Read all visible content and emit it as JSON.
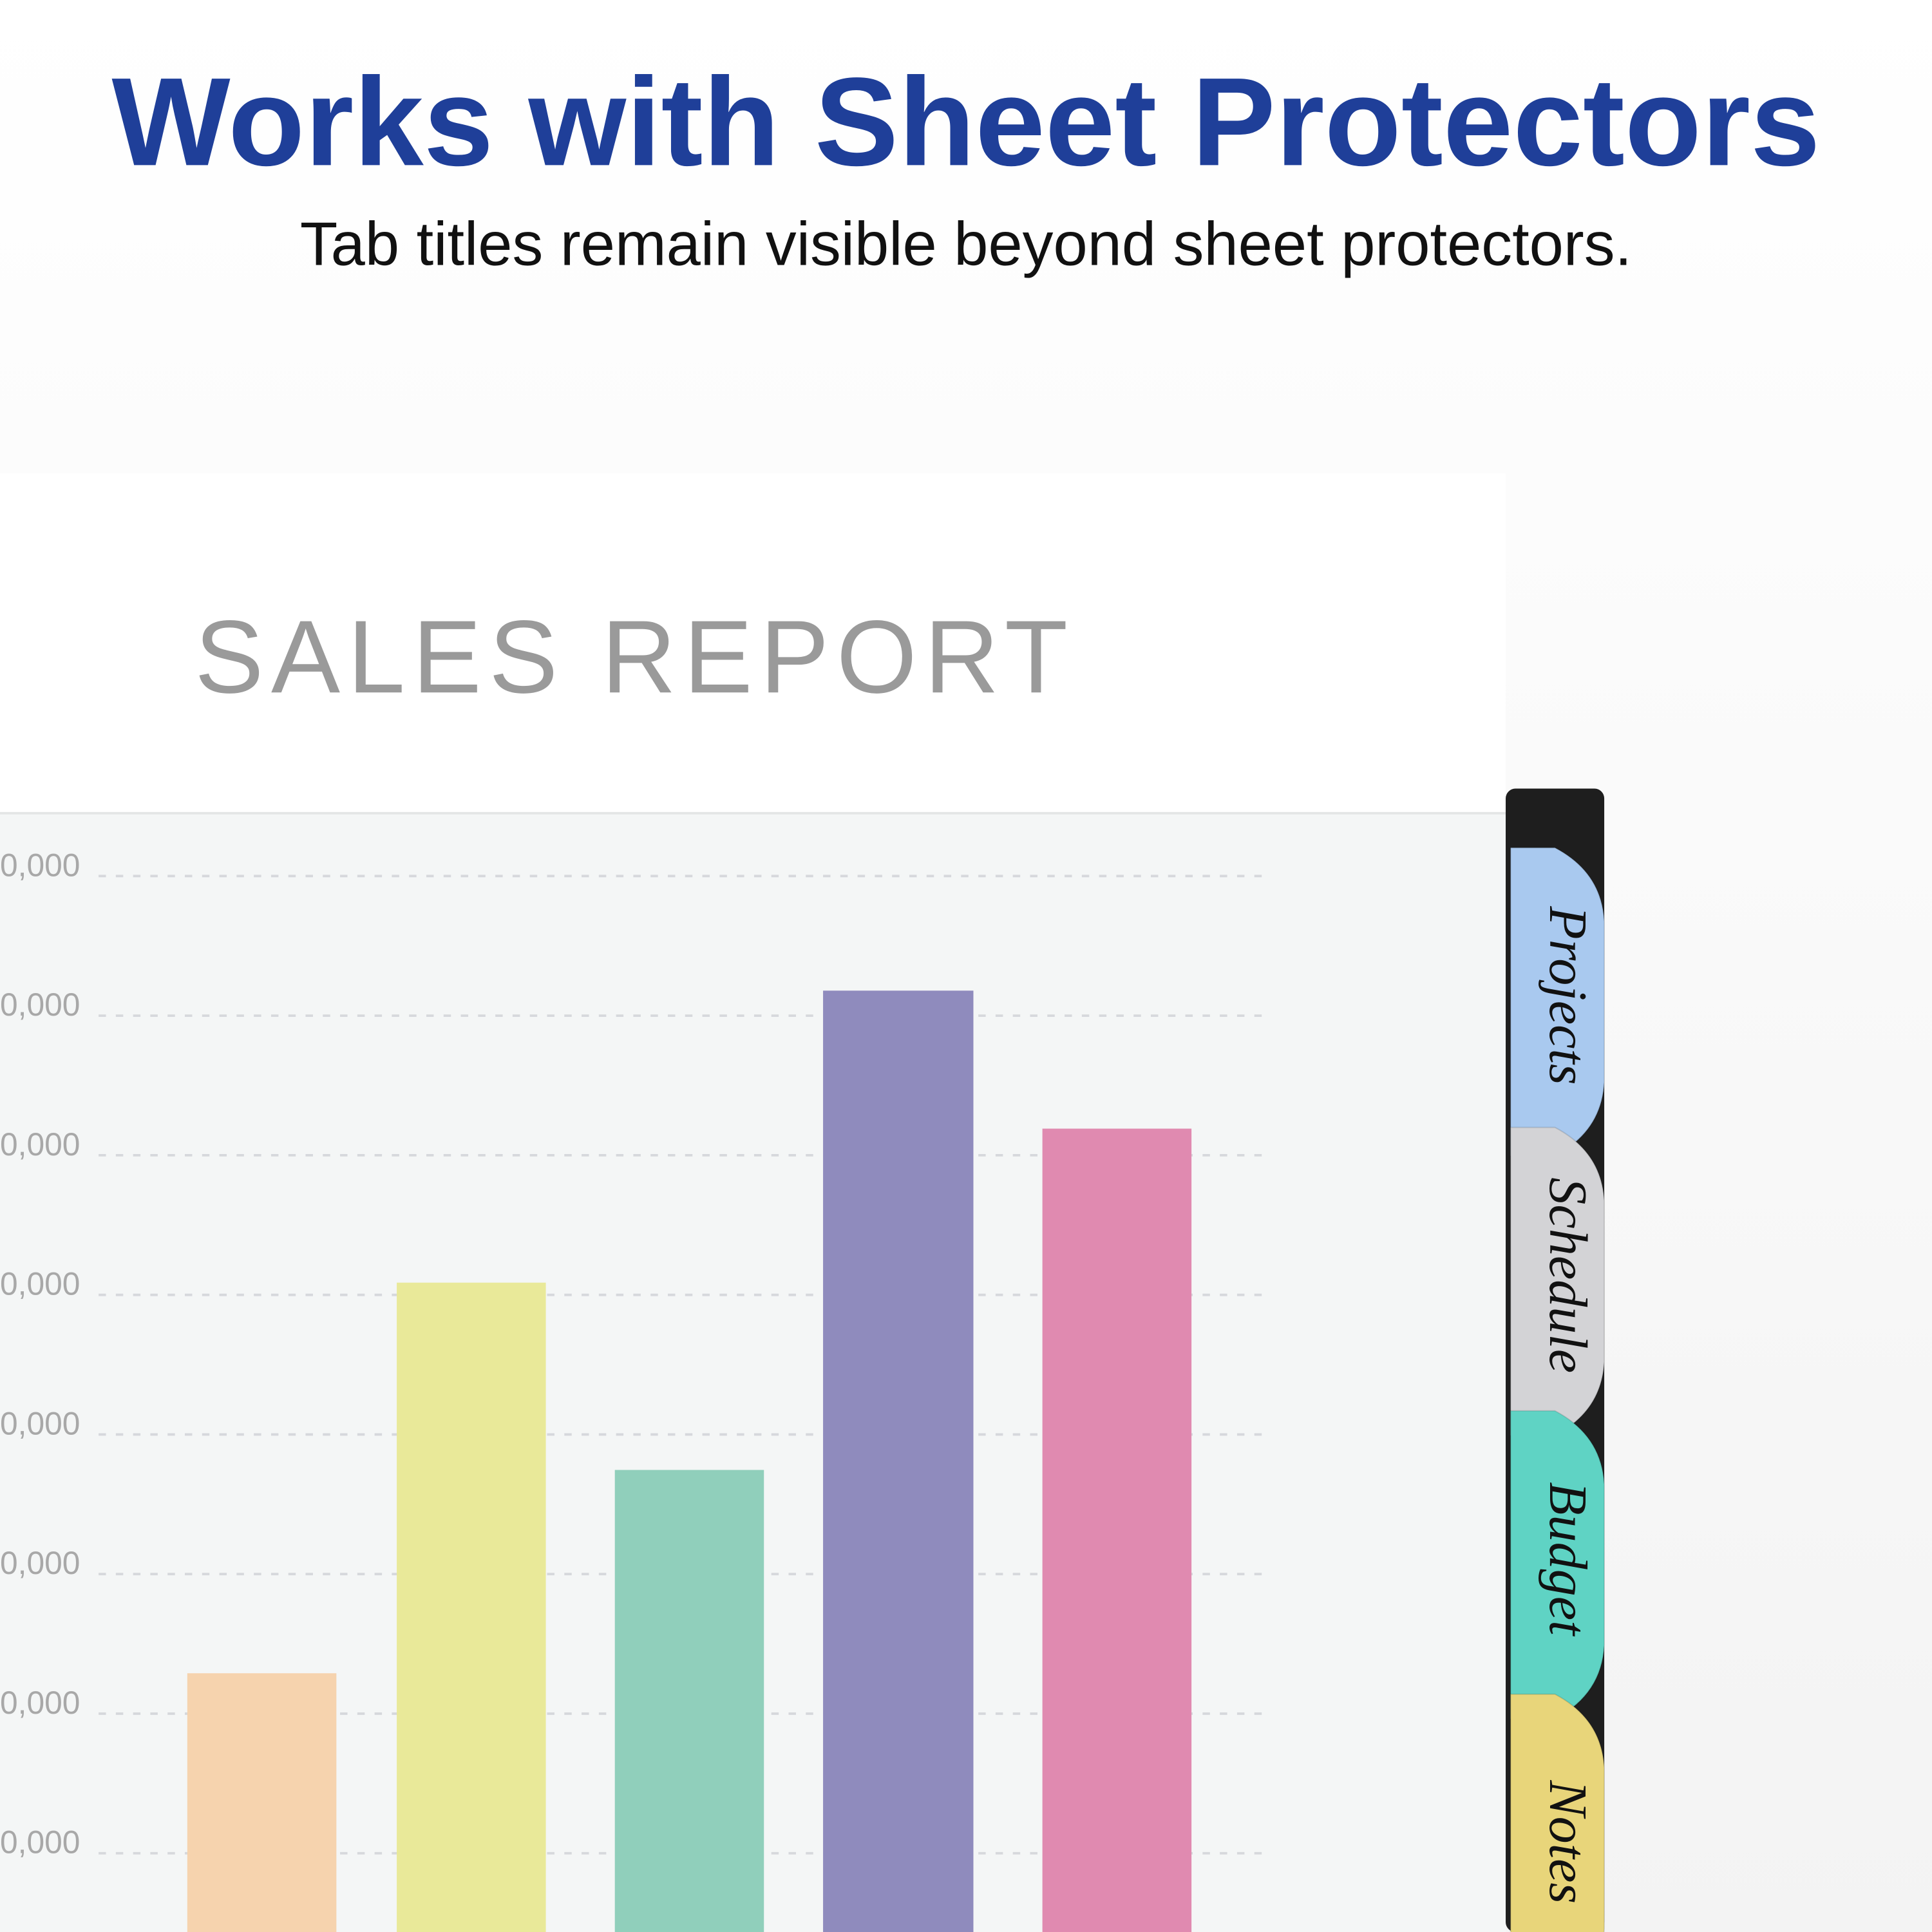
{
  "header": {
    "title": "Works with Sheet Protectors",
    "subtitle": "Tab titles remain visible beyond sheet protectors."
  },
  "report": {
    "title": "SALES REPORT",
    "tick_labels": [
      "0,000",
      "0,000",
      "0,000",
      "0,000",
      "0,000",
      "0,000",
      "0,000",
      "0,000"
    ]
  },
  "tabs": [
    "Projects",
    "Schedule",
    "Budget",
    "Notes"
  ]
}
